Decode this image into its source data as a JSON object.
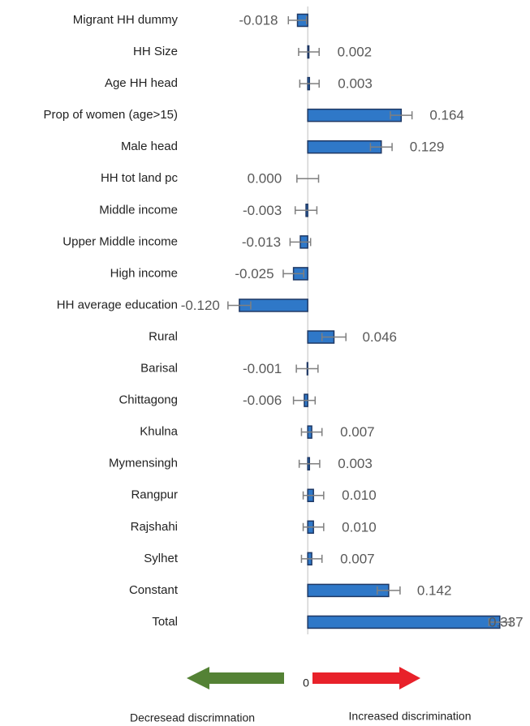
{
  "chart_data": {
    "type": "bar",
    "orientation": "horizontal",
    "categories": [
      "Migrant HH dummy",
      "HH Size",
      "Age HH head",
      "Prop of women (age>15)",
      "Male head",
      "HH tot land pc",
      "Middle income",
      "Upper Middle income",
      "High income",
      "HH average education",
      "Rural",
      "Barisal",
      "Chittagong",
      "Khulna",
      "Mymensingh",
      "Rangpur",
      "Rajshahi",
      "Sylhet",
      "Constant",
      "Total"
    ],
    "values": [
      -0.018,
      0.002,
      0.003,
      0.164,
      0.129,
      0.0,
      -0.003,
      -0.013,
      -0.025,
      -0.12,
      0.046,
      -0.001,
      -0.006,
      0.007,
      0.003,
      0.01,
      0.01,
      0.007,
      0.142,
      0.337
    ],
    "value_labels": [
      "-0.018",
      "0.002",
      "0.003",
      "0.164",
      "0.129",
      "0.000",
      "-0.003",
      "-0.013",
      "-0.025",
      "-0.120",
      "0.046",
      "-0.001",
      "-0.006",
      "0.007",
      "0.003",
      "0.010",
      "0.010",
      "0.007",
      "0.142",
      "0.337"
    ],
    "errors": [
      0.016,
      0.018,
      0.017,
      0.019,
      0.019,
      0.019,
      0.019,
      0.018,
      0.018,
      0.02,
      0.021,
      0.019,
      0.019,
      0.018,
      0.018,
      0.018,
      0.018,
      0.018,
      0.02,
      0.019
    ],
    "color": "#2f78c8",
    "xlim": [
      -0.54,
      0.39
    ],
    "annotations": {
      "zero": "0",
      "left": "Decresead discrimnation",
      "right": "Increased discrimination"
    },
    "left_arrow_color": "#548235",
    "right_arrow_color": "#e8212a"
  }
}
